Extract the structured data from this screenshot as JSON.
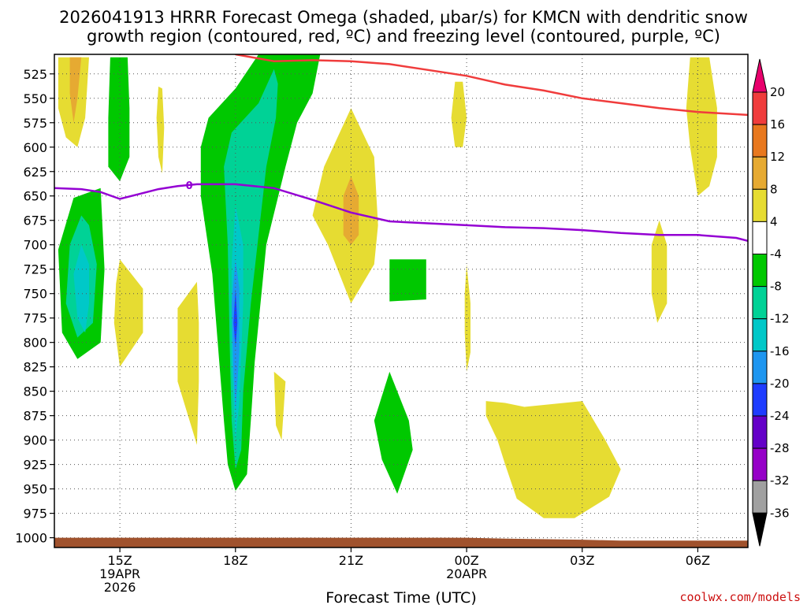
{
  "chart_data": {
    "type": "contour",
    "title_line1": "2026041913 HRRR Forecast Omega (shaded, μbar/s) for KMCN with dendritic snow",
    "title_line2": "growth region (contoured, red, ºC) and freezing level (contoured, purple, ºC)",
    "xlabel": "Forecast Time (UTC)",
    "credit": "coolwx.com/models",
    "x_hours_range": [
      -1.7,
      16.3
    ],
    "y_hpa_range": [
      505,
      1010
    ],
    "y_ticks": [
      525,
      550,
      575,
      600,
      625,
      650,
      675,
      700,
      725,
      750,
      775,
      800,
      825,
      850,
      875,
      900,
      925,
      950,
      975,
      1000
    ],
    "y_tick_labels": [
      "525",
      "550",
      "575",
      "600",
      "625",
      "650",
      "675",
      "700",
      "725",
      "750",
      "775",
      "800",
      "825",
      "850",
      "875",
      "900",
      "925",
      "950",
      "975",
      "1000"
    ],
    "x_ticks": [
      {
        "hour": 0,
        "labels": [
          "15Z",
          "19APR",
          "2026"
        ]
      },
      {
        "hour": 3,
        "labels": [
          "18Z"
        ]
      },
      {
        "hour": 6,
        "labels": [
          "21Z"
        ]
      },
      {
        "hour": 9,
        "labels": [
          "00Z",
          "20APR"
        ]
      },
      {
        "hour": 12,
        "labels": [
          "03Z"
        ]
      },
      {
        "hour": 15,
        "labels": [
          "06Z"
        ]
      }
    ],
    "colorbar": {
      "labels": [
        "20",
        "16",
        "12",
        "8",
        "4",
        "-4",
        "-8",
        "-12",
        "-16",
        "-20",
        "-24",
        "-28",
        "-32",
        "-36"
      ],
      "colors": [
        "#e8006c",
        "#f03c3c",
        "#e8781e",
        "#e6aa32",
        "#e6dc32",
        "#ffffff",
        "#00c800",
        "#00d296",
        "#00c8c8",
        "#1e96f0",
        "#1e3cff",
        "#6400c8",
        "#9600c8",
        "#a0a0a0",
        "#000000"
      ]
    },
    "freezing_level_label": "0",
    "freezing_level": {
      "hours": [
        -1.7,
        -1,
        -0.5,
        0,
        0.5,
        1,
        1.5,
        2,
        2.5,
        3,
        4,
        5,
        6,
        7,
        8,
        9,
        10,
        11,
        12,
        13,
        14,
        15,
        16,
        16.3
      ],
      "hpa": [
        642,
        643,
        646,
        653,
        648,
        643,
        640,
        638,
        638,
        638,
        642,
        654,
        667,
        676,
        678,
        680,
        682,
        683,
        685,
        688,
        690,
        690,
        693,
        696
      ]
    },
    "dgz_upper": {
      "hours": [
        3,
        4,
        5,
        6,
        7,
        8,
        9,
        10,
        11,
        12,
        13,
        14,
        15,
        16.3
      ],
      "hpa": [
        505,
        512,
        511,
        512,
        515,
        521,
        527,
        536,
        542,
        550,
        555,
        560,
        564,
        567
      ]
    },
    "omega_regions": [
      {
        "color": "#00c800",
        "hours": [
          -0.3,
          -0.6,
          -1.2,
          -1.5,
          -1.2,
          -0.6,
          -0.3
        ],
        "hpa": [
          642,
          650,
          690,
          725,
          780,
          815,
          745
        ],
        "poly": [
          [
            -0.5,
            642
          ],
          [
            -1.2,
            652
          ],
          [
            -1.6,
            705
          ],
          [
            -1.5,
            790
          ],
          [
            -1.1,
            817
          ],
          [
            -0.5,
            800
          ],
          [
            -0.4,
            725
          ]
        ]
      },
      {
        "color": "#00d296",
        "poly": [
          [
            -1.0,
            670
          ],
          [
            -1.3,
            700
          ],
          [
            -1.4,
            760
          ],
          [
            -1.1,
            795
          ],
          [
            -0.7,
            780
          ],
          [
            -0.6,
            720
          ],
          [
            -0.8,
            680
          ]
        ]
      },
      {
        "color": "#00c8c8",
        "poly": [
          [
            -1.0,
            700
          ],
          [
            -1.2,
            730
          ],
          [
            -1.1,
            775
          ],
          [
            -0.9,
            790
          ],
          [
            -0.8,
            760
          ],
          [
            -0.8,
            720
          ]
        ]
      },
      {
        "color": "#00c800",
        "poly": [
          [
            -0.25,
            508
          ],
          [
            0.2,
            508
          ],
          [
            0.25,
            560
          ],
          [
            0.25,
            610
          ],
          [
            0.0,
            635
          ],
          [
            -0.3,
            620
          ],
          [
            -0.3,
            570
          ]
        ]
      },
      {
        "color": "#e6dc32",
        "poly": [
          [
            -1.6,
            508
          ],
          [
            -0.8,
            508
          ],
          [
            -0.9,
            570
          ],
          [
            -1.1,
            600
          ],
          [
            -1.4,
            590
          ],
          [
            -1.6,
            560
          ]
        ]
      },
      {
        "color": "#e6aa32",
        "poly": [
          [
            -1.3,
            508
          ],
          [
            -1.0,
            508
          ],
          [
            -1.1,
            550
          ],
          [
            -1.2,
            575
          ],
          [
            -1.3,
            545
          ]
        ]
      },
      {
        "color": "#e6dc32",
        "poly": [
          [
            1.0,
            538
          ],
          [
            1.1,
            540
          ],
          [
            1.15,
            580
          ],
          [
            1.1,
            627
          ],
          [
            1.0,
            610
          ],
          [
            0.95,
            570
          ]
        ]
      },
      {
        "color": "#e6dc32",
        "poly": [
          [
            0.0,
            715
          ],
          [
            0.6,
            745
          ],
          [
            0.6,
            790
          ],
          [
            0.0,
            825
          ],
          [
            -0.15,
            780
          ],
          [
            -0.1,
            740
          ]
        ]
      },
      {
        "color": "#e6dc32",
        "poly": [
          [
            2.0,
            738
          ],
          [
            1.5,
            765
          ],
          [
            1.5,
            840
          ],
          [
            2.0,
            905
          ],
          [
            2.05,
            840
          ],
          [
            2.05,
            780
          ]
        ]
      },
      {
        "color": "#00c800",
        "poly": [
          [
            5.2,
            505
          ],
          [
            3.6,
            505
          ],
          [
            3.0,
            540
          ],
          [
            2.3,
            570
          ],
          [
            2.1,
            600
          ],
          [
            2.1,
            650
          ],
          [
            2.4,
            730
          ],
          [
            2.6,
            830
          ],
          [
            2.7,
            880
          ],
          [
            2.8,
            925
          ],
          [
            3.0,
            952
          ],
          [
            3.3,
            935
          ],
          [
            3.4,
            880
          ],
          [
            3.5,
            820
          ],
          [
            3.8,
            700
          ],
          [
            4.3,
            620
          ],
          [
            4.6,
            575
          ],
          [
            5.0,
            545
          ]
        ]
      },
      {
        "color": "#00d296",
        "poly": [
          [
            4.0,
            520
          ],
          [
            3.6,
            555
          ],
          [
            2.9,
            585
          ],
          [
            2.7,
            620
          ],
          [
            2.8,
            700
          ],
          [
            2.85,
            800
          ],
          [
            2.9,
            880
          ],
          [
            3.0,
            930
          ],
          [
            3.15,
            910
          ],
          [
            3.2,
            850
          ],
          [
            3.4,
            760
          ],
          [
            3.6,
            690
          ],
          [
            3.8,
            620
          ],
          [
            4.05,
            570
          ],
          [
            4.1,
            535
          ]
        ]
      },
      {
        "color": "#00c8c8",
        "poly": [
          [
            3.0,
            660
          ],
          [
            2.9,
            720
          ],
          [
            2.9,
            820
          ],
          [
            3.0,
            900
          ],
          [
            3.1,
            860
          ],
          [
            3.2,
            760
          ],
          [
            3.2,
            700
          ]
        ]
      },
      {
        "color": "#1e96f0",
        "poly": [
          [
            3.0,
            715
          ],
          [
            2.9,
            760
          ],
          [
            2.95,
            830
          ],
          [
            3.0,
            870
          ],
          [
            3.1,
            810
          ],
          [
            3.1,
            745
          ]
        ]
      },
      {
        "color": "#1e3cff",
        "poly": [
          [
            3.0,
            745
          ],
          [
            2.95,
            780
          ],
          [
            3.0,
            805
          ],
          [
            3.05,
            780
          ]
        ]
      },
      {
        "color": "#e6dc32",
        "poly": [
          [
            4.0,
            830
          ],
          [
            4.3,
            840
          ],
          [
            4.2,
            900
          ],
          [
            4.05,
            885
          ]
        ]
      },
      {
        "color": "#e6dc32",
        "poly": [
          [
            6.0,
            560
          ],
          [
            6.6,
            610
          ],
          [
            6.7,
            680
          ],
          [
            6.6,
            720
          ],
          [
            6.0,
            760
          ],
          [
            5.4,
            700
          ],
          [
            5.0,
            670
          ],
          [
            5.3,
            620
          ]
        ]
      },
      {
        "color": "#e6aa32",
        "poly": [
          [
            6.0,
            630
          ],
          [
            6.2,
            650
          ],
          [
            6.2,
            690
          ],
          [
            6.0,
            700
          ],
          [
            5.8,
            690
          ],
          [
            5.8,
            650
          ]
        ]
      },
      {
        "color": "#00c800",
        "poly": [
          [
            7.0,
            715
          ],
          [
            7.95,
            715
          ],
          [
            7.95,
            756
          ],
          [
            7.0,
            758
          ]
        ]
      },
      {
        "color": "#e6dc32",
        "poly": [
          [
            8.7,
            533
          ],
          [
            8.9,
            533
          ],
          [
            9.0,
            570
          ],
          [
            8.9,
            600
          ],
          [
            8.7,
            600
          ],
          [
            8.6,
            570
          ]
        ]
      },
      {
        "color": "#e6dc32",
        "poly": [
          [
            9.0,
            720
          ],
          [
            9.1,
            760
          ],
          [
            9.1,
            810
          ],
          [
            9.0,
            830
          ],
          [
            8.95,
            790
          ],
          [
            8.95,
            750
          ]
        ]
      },
      {
        "color": "#00c800",
        "poly": [
          [
            7.0,
            830
          ],
          [
            7.5,
            880
          ],
          [
            7.6,
            910
          ],
          [
            7.2,
            955
          ],
          [
            6.8,
            920
          ],
          [
            6.6,
            880
          ]
        ]
      },
      {
        "color": "#e6dc32",
        "poly": [
          [
            9.5,
            860
          ],
          [
            10.0,
            862
          ],
          [
            10.5,
            866
          ],
          [
            12.0,
            860
          ],
          [
            12.6,
            900
          ],
          [
            13.0,
            930
          ],
          [
            12.7,
            958
          ],
          [
            11.8,
            980
          ],
          [
            11.0,
            980
          ],
          [
            10.3,
            960
          ],
          [
            10.0,
            925
          ],
          [
            9.8,
            900
          ],
          [
            9.5,
            875
          ]
        ]
      },
      {
        "color": "#e6dc32",
        "poly": [
          [
            14.8,
            508
          ],
          [
            15.3,
            508
          ],
          [
            15.5,
            560
          ],
          [
            15.5,
            610
          ],
          [
            15.3,
            640
          ],
          [
            15.0,
            650
          ],
          [
            14.8,
            600
          ],
          [
            14.7,
            560
          ]
        ]
      },
      {
        "color": "#e6dc32",
        "poly": [
          [
            14.0,
            675
          ],
          [
            14.2,
            700
          ],
          [
            14.2,
            760
          ],
          [
            13.95,
            780
          ],
          [
            13.8,
            750
          ],
          [
            13.8,
            700
          ]
        ]
      }
    ],
    "ground": {
      "color": "#a0522d",
      "hours": [
        -1.7,
        9.0,
        10.0,
        12.0,
        13.0,
        16.3
      ],
      "hpa": [
        1000,
        1000,
        1001,
        1002,
        1003,
        1003
      ]
    }
  }
}
